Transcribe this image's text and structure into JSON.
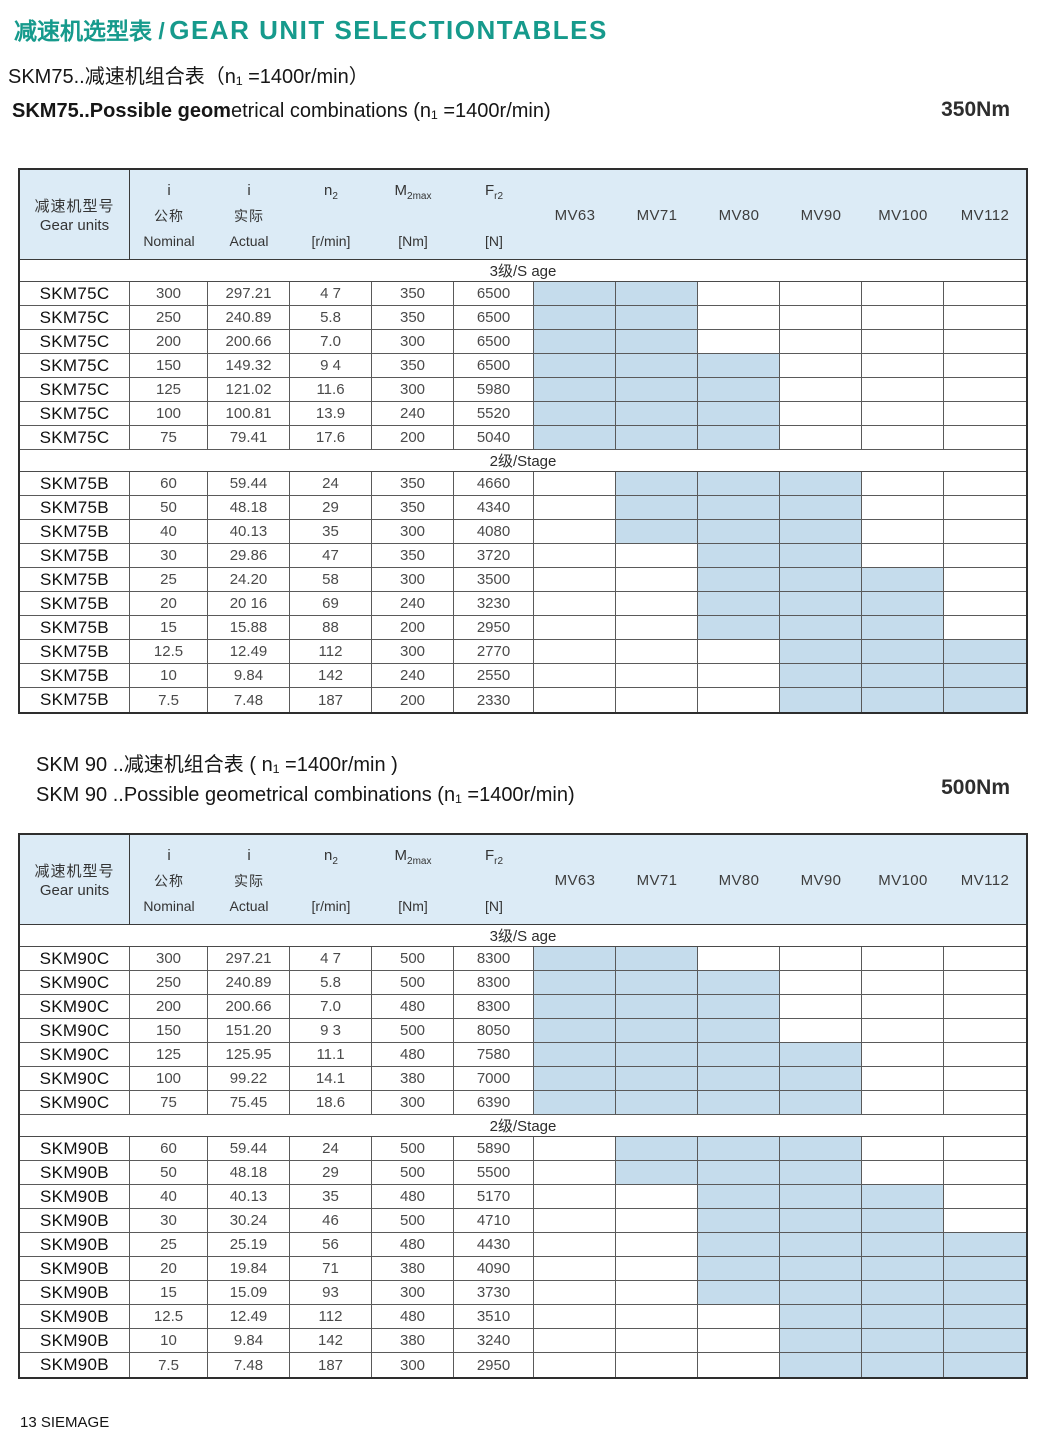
{
  "colors": {
    "accent": "#169a8c",
    "header_bg": "#dcebf6",
    "shaded_cell": "#c5dcec"
  },
  "header": {
    "title_zh": "减速机选型表 /",
    "title_en": "GEAR UNIT SELECTIONTABLES"
  },
  "footer": {
    "text": "13 SIEMAGE"
  },
  "columns": {
    "gear": {
      "zh": "减速机型号",
      "en": "Gear units"
    },
    "ratio_cols": [
      {
        "sym": "i",
        "sub": "",
        "zh": "公称",
        "en": "Nominal"
      },
      {
        "sym": "i",
        "sub": "",
        "zh": "实际",
        "en": "Actual"
      },
      {
        "sym": "n",
        "sub": "2",
        "zh": "",
        "en": "[r/min]"
      },
      {
        "sym": "M",
        "sub": "2max",
        "zh": "",
        "en": "[Nm]"
      },
      {
        "sym": "F",
        "sub": "r2",
        "zh": "",
        "en": "[N]"
      }
    ],
    "mv": [
      "MV63",
      "MV71",
      "MV80",
      "MV90",
      "MV100",
      "MV112"
    ]
  },
  "tables": [
    {
      "subtitle_zh": "SKM75..减速机组合表（n₁ =1400r/min）",
      "subtitle_en_bold": "SKM75..Possible geom",
      "subtitle_en_rest": "etrical combinations  (n₁ =1400r/min)",
      "torque": "350Nm",
      "sections": [
        {
          "label": "3级/S age",
          "rows": [
            {
              "unit": "SKM75C",
              "values": [
                "300",
                "297.21",
                "4 7",
                "350",
                "6500"
              ],
              "mv": [
                1,
                1,
                0,
                0,
                0,
                0
              ]
            },
            {
              "unit": "SKM75C",
              "values": [
                "250",
                "240.89",
                "5.8",
                "350",
                "6500"
              ],
              "mv": [
                1,
                1,
                0,
                0,
                0,
                0
              ]
            },
            {
              "unit": "SKM75C",
              "values": [
                "200",
                "200.66",
                "7.0",
                "300",
                "6500"
              ],
              "mv": [
                1,
                1,
                0,
                0,
                0,
                0
              ]
            },
            {
              "unit": "SKM75C",
              "values": [
                "150",
                "149.32",
                "9 4",
                "350",
                "6500"
              ],
              "mv": [
                1,
                1,
                1,
                0,
                0,
                0
              ]
            },
            {
              "unit": "SKM75C",
              "values": [
                "125",
                "121.02",
                "11.6",
                "300",
                "5980"
              ],
              "mv": [
                1,
                1,
                1,
                0,
                0,
                0
              ]
            },
            {
              "unit": "SKM75C",
              "values": [
                "100",
                "100.81",
                "13.9",
                "240",
                "5520"
              ],
              "mv": [
                1,
                1,
                1,
                0,
                0,
                0
              ]
            },
            {
              "unit": "SKM75C",
              "values": [
                "75",
                "79.41",
                "17.6",
                "200",
                "5040"
              ],
              "mv": [
                1,
                1,
                1,
                0,
                0,
                0
              ]
            }
          ]
        },
        {
          "label": "2级/Stage",
          "rows": [
            {
              "unit": "SKM75B",
              "values": [
                "60",
                "59.44",
                "24",
                "350",
                "4660"
              ],
              "mv": [
                0,
                1,
                1,
                1,
                0,
                0
              ]
            },
            {
              "unit": "SKM75B",
              "values": [
                "50",
                "48.18",
                "29",
                "350",
                "4340"
              ],
              "mv": [
                0,
                1,
                1,
                1,
                0,
                0
              ]
            },
            {
              "unit": "SKM75B",
              "values": [
                "40",
                "40.13",
                "35",
                "300",
                "4080"
              ],
              "mv": [
                0,
                1,
                1,
                1,
                0,
                0
              ]
            },
            {
              "unit": "SKM75B",
              "values": [
                "30",
                "29.86",
                "47",
                "350",
                "3720"
              ],
              "mv": [
                0,
                0,
                1,
                1,
                0,
                0
              ]
            },
            {
              "unit": "SKM75B",
              "values": [
                "25",
                "24.20",
                "58",
                "300",
                "3500"
              ],
              "mv": [
                0,
                0,
                1,
                1,
                1,
                0
              ]
            },
            {
              "unit": "SKM75B",
              "values": [
                "20",
                "20 16",
                "69",
                "240",
                "3230"
              ],
              "mv": [
                0,
                0,
                1,
                1,
                1,
                0
              ]
            },
            {
              "unit": "SKM75B",
              "values": [
                "15",
                "15.88",
                "88",
                "200",
                "2950"
              ],
              "mv": [
                0,
                0,
                1,
                1,
                1,
                0
              ]
            },
            {
              "unit": "SKM75B",
              "values": [
                "12.5",
                "12.49",
                "112",
                "300",
                "2770"
              ],
              "mv": [
                0,
                0,
                0,
                1,
                1,
                1
              ]
            },
            {
              "unit": "SKM75B",
              "values": [
                "10",
                "9.84",
                "142",
                "240",
                "2550"
              ],
              "mv": [
                0,
                0,
                0,
                1,
                1,
                1
              ]
            },
            {
              "unit": "SKM75B",
              "values": [
                "7.5",
                "7.48",
                "187",
                "200",
                "2330"
              ],
              "mv": [
                0,
                0,
                0,
                1,
                1,
                1
              ]
            }
          ]
        }
      ]
    },
    {
      "subtitle_zh": "SKM 90 ..减速机组合表 ( n₁ =1400r/min )",
      "subtitle_en_bold": "",
      "subtitle_en_rest": "SKM 90 ..Possible geometrical combinations (n₁ =1400r/min)",
      "torque": "500Nm",
      "sections": [
        {
          "label": "3级/S age",
          "rows": [
            {
              "unit": "SKM90C",
              "values": [
                "300",
                "297.21",
                "4 7",
                "500",
                "8300"
              ],
              "mv": [
                1,
                1,
                0,
                0,
                0,
                0
              ]
            },
            {
              "unit": "SKM90C",
              "values": [
                "250",
                "240.89",
                "5.8",
                "500",
                "8300"
              ],
              "mv": [
                1,
                1,
                1,
                0,
                0,
                0
              ]
            },
            {
              "unit": "SKM90C",
              "values": [
                "200",
                "200.66",
                "7.0",
                "480",
                "8300"
              ],
              "mv": [
                1,
                1,
                1,
                0,
                0,
                0
              ]
            },
            {
              "unit": "SKM90C",
              "values": [
                "150",
                "151.20",
                "9 3",
                "500",
                "8050"
              ],
              "mv": [
                1,
                1,
                1,
                0,
                0,
                0
              ]
            },
            {
              "unit": "SKM90C",
              "values": [
                "125",
                "125.95",
                "11.1",
                "480",
                "7580"
              ],
              "mv": [
                1,
                1,
                1,
                1,
                0,
                0
              ]
            },
            {
              "unit": "SKM90C",
              "values": [
                "100",
                "99.22",
                "14.1",
                "380",
                "7000"
              ],
              "mv": [
                1,
                1,
                1,
                1,
                0,
                0
              ]
            },
            {
              "unit": "SKM90C",
              "values": [
                "75",
                "75.45",
                "18.6",
                "300",
                "6390"
              ],
              "mv": [
                1,
                1,
                1,
                1,
                0,
                0
              ]
            }
          ]
        },
        {
          "label": "2级/Stage",
          "rows": [
            {
              "unit": "SKM90B",
              "values": [
                "60",
                "59.44",
                "24",
                "500",
                "5890"
              ],
              "mv": [
                0,
                1,
                1,
                1,
                0,
                0
              ]
            },
            {
              "unit": "SKM90B",
              "values": [
                "50",
                "48.18",
                "29",
                "500",
                "5500"
              ],
              "mv": [
                0,
                1,
                1,
                1,
                0,
                0
              ]
            },
            {
              "unit": "SKM90B",
              "values": [
                "40",
                "40.13",
                "35",
                "480",
                "5170"
              ],
              "mv": [
                0,
                0,
                1,
                1,
                1,
                0
              ]
            },
            {
              "unit": "SKM90B",
              "values": [
                "30",
                "30.24",
                "46",
                "500",
                "4710"
              ],
              "mv": [
                0,
                0,
                1,
                1,
                1,
                0
              ]
            },
            {
              "unit": "SKM90B",
              "values": [
                "25",
                "25.19",
                "56",
                "480",
                "4430"
              ],
              "mv": [
                0,
                0,
                1,
                1,
                1,
                1
              ]
            },
            {
              "unit": "SKM90B",
              "values": [
                "20",
                "19.84",
                "71",
                "380",
                "4090"
              ],
              "mv": [
                0,
                0,
                1,
                1,
                1,
                1
              ]
            },
            {
              "unit": "SKM90B",
              "values": [
                "15",
                "15.09",
                "93",
                "300",
                "3730"
              ],
              "mv": [
                0,
                0,
                1,
                1,
                1,
                1
              ]
            },
            {
              "unit": "SKM90B",
              "values": [
                "12.5",
                "12.49",
                "112",
                "480",
                "3510"
              ],
              "mv": [
                0,
                0,
                0,
                1,
                1,
                1
              ]
            },
            {
              "unit": "SKM90B",
              "values": [
                "10",
                "9.84",
                "142",
                "380",
                "3240"
              ],
              "mv": [
                0,
                0,
                0,
                1,
                1,
                1
              ]
            },
            {
              "unit": "SKM90B",
              "values": [
                "7.5",
                "7.48",
                "187",
                "300",
                "2950"
              ],
              "mv": [
                0,
                0,
                0,
                1,
                1,
                1
              ]
            }
          ]
        }
      ]
    }
  ]
}
